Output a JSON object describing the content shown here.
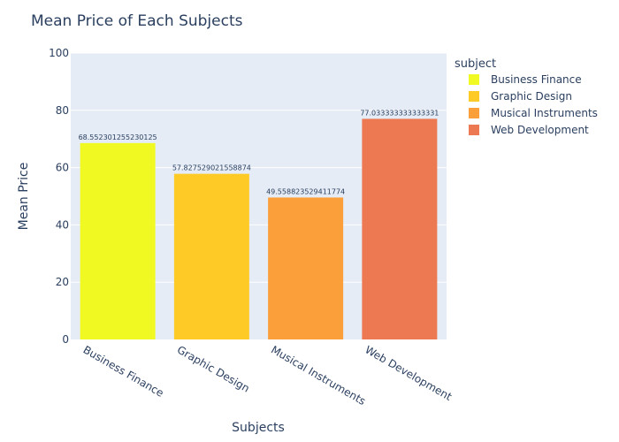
{
  "chart_data": {
    "type": "bar",
    "title": "Mean Price of Each Subjects",
    "xlabel": "Subjects",
    "ylabel": "Mean Price",
    "ylim": [
      0,
      100
    ],
    "yticks": [
      0,
      20,
      40,
      60,
      80,
      100
    ],
    "grid": true,
    "legend_title": "subject",
    "legend_position": "right",
    "categories": [
      "Business Finance",
      "Graphic Design",
      "Musical Instruments",
      "Web Development"
    ],
    "values": [
      68.55230125523012,
      57.827529021558874,
      49.558823529411775,
      77.03333333333333
    ],
    "data_labels": [
      "68.552301255230125",
      "57.827529021558874",
      "49.558823529411774",
      "77.033333333333331"
    ],
    "colors": [
      "#f0f921",
      "#fdca26",
      "#fb9f3a",
      "#ed7953"
    ],
    "plot_background": "#e5ecf6"
  }
}
